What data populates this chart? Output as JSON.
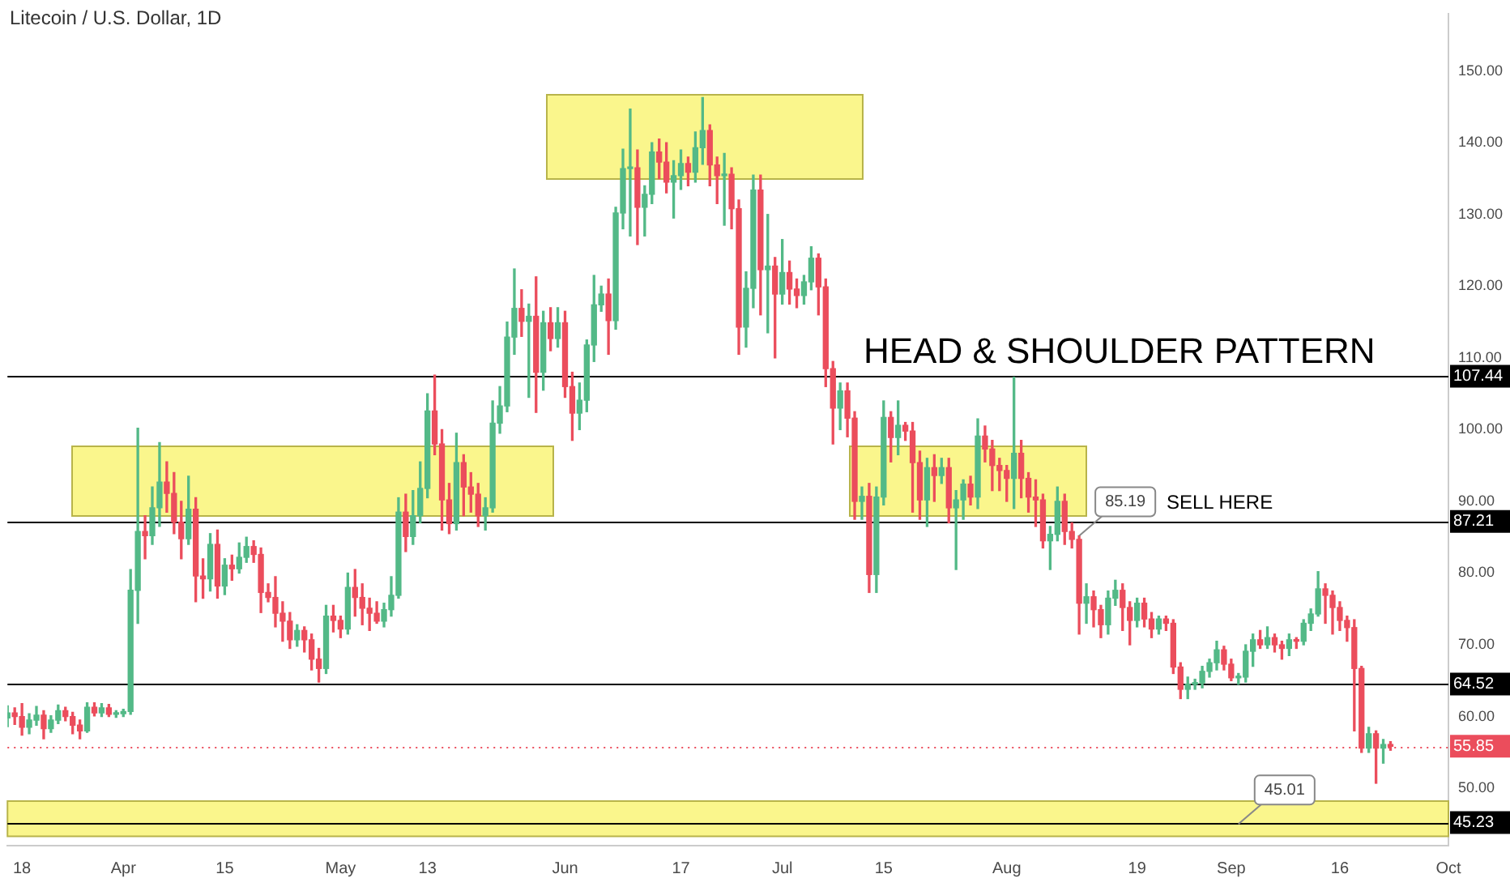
{
  "chart_data": {
    "type": "candlestick",
    "title": "Litecoin / U.S. Dollar, 1D",
    "x": [
      "--03-16",
      "--03-17",
      "--03-18",
      "--03-19",
      "--03-20",
      "--03-21",
      "--03-22",
      "--03-23",
      "--03-24",
      "--03-25",
      "--03-26",
      "--03-27",
      "--03-28",
      "--03-29",
      "--03-30",
      "--03-31",
      "--04-01",
      "--04-02",
      "--04-03",
      "--04-04",
      "--04-05",
      "--04-06",
      "--04-07",
      "--04-08",
      "--04-09",
      "--04-10",
      "--04-11",
      "--04-12",
      "--04-13",
      "--04-14",
      "--04-15",
      "--04-16",
      "--04-17",
      "--04-18",
      "--04-19",
      "--04-20",
      "--04-21",
      "--04-22",
      "--04-23",
      "--04-24",
      "--04-25",
      "--04-26",
      "--04-27",
      "--04-28",
      "--04-29",
      "--04-30",
      "--05-01",
      "--05-02",
      "--05-03",
      "--05-04",
      "--05-05",
      "--05-06",
      "--05-07",
      "--05-08",
      "--05-09",
      "--05-10",
      "--05-11",
      "--05-12",
      "--05-13",
      "--05-14",
      "--05-15",
      "--05-16",
      "--05-17",
      "--05-18",
      "--05-19",
      "--05-20",
      "--05-21",
      "--05-22",
      "--05-23",
      "--05-24",
      "--05-25",
      "--05-26",
      "--05-27",
      "--05-28",
      "--05-29",
      "--05-30",
      "--05-31",
      "--06-01",
      "--06-02",
      "--06-03",
      "--06-04",
      "--06-05",
      "--06-06",
      "--06-07",
      "--06-08",
      "--06-09",
      "--06-10",
      "--06-11",
      "--06-12",
      "--06-13",
      "--06-14",
      "--06-15",
      "--06-16",
      "--06-17",
      "--06-18",
      "--06-19",
      "--06-20",
      "--06-21",
      "--06-22",
      "--06-23",
      "--06-24",
      "--06-25",
      "--06-26",
      "--06-27",
      "--06-28",
      "--06-29",
      "--06-30",
      "--07-01",
      "--07-02",
      "--07-03",
      "--07-04",
      "--07-05",
      "--07-06",
      "--07-07",
      "--07-08",
      "--07-09",
      "--07-10",
      "--07-11",
      "--07-12",
      "--07-13",
      "--07-14",
      "--07-15",
      "--07-16",
      "--07-17",
      "--07-18",
      "--07-19",
      "--07-20",
      "--07-21",
      "--07-22",
      "--07-23",
      "--07-24",
      "--07-25",
      "--07-26",
      "--07-27",
      "--07-28",
      "--07-29",
      "--07-30",
      "--07-31",
      "--08-01",
      "--08-02",
      "--08-03",
      "--08-04",
      "--08-05",
      "--08-06",
      "--08-07",
      "--08-08",
      "--08-09",
      "--08-10",
      "--08-11",
      "--08-12",
      "--08-13",
      "--08-14",
      "--08-15",
      "--08-16",
      "--08-17",
      "--08-18",
      "--08-19",
      "--08-20",
      "--08-21",
      "--08-22",
      "--08-23",
      "--08-24",
      "--08-25",
      "--08-26",
      "--08-27",
      "--08-28",
      "--08-29",
      "--08-30",
      "--08-31",
      "--09-01",
      "--09-02",
      "--09-03",
      "--09-04",
      "--09-05",
      "--09-06",
      "--09-07",
      "--09-08",
      "--09-09",
      "--09-10",
      "--09-11",
      "--09-12",
      "--09-13",
      "--09-14",
      "--09-15",
      "--09-16",
      "--09-17",
      "--09-18",
      "--09-19",
      "--09-20",
      "--09-21",
      "--09-22",
      "--09-23"
    ],
    "ohlc": [
      [
        59.8,
        61.5,
        58.6,
        60.5
      ],
      [
        60.5,
        61.2,
        58.9,
        60.0
      ],
      [
        60.0,
        61.8,
        57.4,
        58.5
      ],
      [
        58.5,
        60.4,
        57.6,
        59.5
      ],
      [
        59.5,
        61.4,
        58.8,
        60.2
      ],
      [
        60.2,
        60.8,
        56.9,
        58.3
      ],
      [
        58.3,
        60.1,
        57.8,
        59.5
      ],
      [
        59.5,
        61.6,
        59.0,
        60.8
      ],
      [
        60.8,
        61.3,
        59.4,
        60.0
      ],
      [
        60.0,
        60.6,
        57.6,
        58.8
      ],
      [
        58.8,
        59.5,
        56.9,
        58.0
      ],
      [
        58.0,
        61.9,
        57.8,
        61.3
      ],
      [
        61.3,
        61.9,
        60.1,
        60.5
      ],
      [
        60.5,
        61.8,
        60.0,
        61.2
      ],
      [
        61.2,
        61.7,
        60.0,
        60.3
      ],
      [
        60.3,
        60.8,
        59.9,
        60.4
      ],
      [
        60.4,
        61.0,
        60.0,
        60.7
      ],
      [
        60.7,
        80.5,
        60.3,
        77.6
      ],
      [
        77.6,
        100.2,
        73.0,
        85.8
      ],
      [
        85.8,
        88.0,
        82.0,
        85.2
      ],
      [
        85.2,
        92.0,
        84.0,
        89.1
      ],
      [
        89.1,
        98.2,
        86.5,
        92.7
      ],
      [
        92.7,
        95.5,
        88.5,
        91.1
      ],
      [
        91.1,
        94.0,
        85.5,
        87.1
      ],
      [
        87.1,
        90.0,
        82.0,
        84.8
      ],
      [
        84.8,
        93.5,
        84.0,
        88.9
      ],
      [
        88.9,
        90.5,
        76.0,
        79.6
      ],
      [
        79.6,
        82.0,
        76.5,
        79.2
      ],
      [
        79.2,
        85.5,
        77.5,
        84.0
      ],
      [
        84.0,
        86.0,
        76.5,
        78.2
      ],
      [
        78.2,
        82.0,
        77.0,
        81.1
      ],
      [
        81.1,
        82.5,
        79.0,
        80.6
      ],
      [
        80.6,
        84.2,
        80.0,
        82.2
      ],
      [
        82.2,
        85.0,
        81.5,
        83.7
      ],
      [
        83.7,
        84.5,
        81.5,
        82.6
      ],
      [
        82.6,
        83.5,
        74.5,
        77.3
      ],
      [
        77.3,
        78.5,
        76.0,
        76.6
      ],
      [
        76.6,
        79.5,
        72.5,
        74.4
      ],
      [
        74.4,
        76.0,
        70.5,
        73.3
      ],
      [
        73.3,
        74.5,
        69.5,
        70.7
      ],
      [
        70.7,
        72.8,
        69.8,
        72.0
      ],
      [
        72.0,
        72.5,
        69.0,
        70.7
      ],
      [
        70.7,
        71.5,
        66.5,
        68.0
      ],
      [
        68.0,
        69.5,
        64.8,
        66.7
      ],
      [
        66.7,
        75.5,
        66.0,
        74.0
      ],
      [
        74.0,
        75.5,
        71.8,
        73.4
      ],
      [
        73.4,
        74.0,
        71.0,
        72.2
      ],
      [
        72.2,
        80.0,
        71.5,
        78.0
      ],
      [
        78.0,
        80.5,
        74.0,
        76.6
      ],
      [
        76.6,
        78.5,
        72.8,
        75.1
      ],
      [
        75.1,
        76.5,
        72.0,
        74.4
      ],
      [
        74.4,
        76.0,
        73.0,
        73.3
      ],
      [
        73.3,
        75.8,
        72.5,
        74.9
      ],
      [
        74.9,
        79.5,
        74.0,
        76.9
      ],
      [
        76.9,
        90.5,
        76.5,
        88.5
      ],
      [
        88.5,
        91.0,
        83.0,
        85.1
      ],
      [
        85.1,
        91.5,
        84.0,
        88.0
      ],
      [
        88.0,
        95.5,
        87.0,
        91.8
      ],
      [
        91.8,
        105.0,
        90.5,
        102.6
      ],
      [
        102.6,
        107.6,
        96.5,
        98.0
      ],
      [
        98.0,
        100.0,
        86.0,
        90.2
      ],
      [
        90.2,
        92.5,
        85.5,
        86.9
      ],
      [
        86.9,
        99.5,
        86.0,
        95.4
      ],
      [
        95.4,
        96.5,
        88.0,
        92.0
      ],
      [
        92.0,
        94.0,
        88.5,
        91.0
      ],
      [
        91.0,
        92.5,
        86.5,
        88.0
      ],
      [
        88.0,
        90.5,
        86.0,
        89.1
      ],
      [
        89.1,
        104.0,
        88.5,
        100.9
      ],
      [
        100.9,
        106.0,
        99.5,
        103.3
      ],
      [
        103.3,
        115.0,
        102.5,
        112.9
      ],
      [
        112.9,
        122.4,
        110.5,
        116.9
      ],
      [
        116.9,
        119.5,
        113.0,
        115.1
      ],
      [
        115.1,
        117.5,
        104.5,
        115.8
      ],
      [
        115.8,
        121.3,
        102.4,
        108.0
      ],
      [
        108.0,
        116.5,
        105.5,
        114.9
      ],
      [
        114.9,
        117.0,
        111.0,
        112.7
      ],
      [
        112.7,
        117.0,
        111.5,
        114.9
      ],
      [
        114.9,
        116.5,
        104.5,
        106.0
      ],
      [
        106.0,
        108.0,
        98.5,
        102.3
      ],
      [
        102.3,
        106.5,
        100.0,
        104.1
      ],
      [
        104.1,
        112.5,
        102.5,
        111.8
      ],
      [
        111.8,
        121.5,
        109.5,
        117.4
      ],
      [
        117.4,
        120.0,
        116.5,
        118.9
      ],
      [
        118.9,
        121.0,
        110.5,
        115.2
      ],
      [
        115.2,
        131.0,
        114.0,
        130.2
      ],
      [
        130.2,
        139.1,
        128.0,
        136.4
      ],
      [
        136.4,
        144.7,
        127.0,
        136.5
      ],
      [
        136.5,
        139.0,
        125.8,
        131.0
      ],
      [
        131.0,
        134.0,
        127.0,
        132.8
      ],
      [
        132.8,
        140.0,
        131.5,
        138.7
      ],
      [
        138.7,
        140.5,
        135.0,
        137.3
      ],
      [
        137.3,
        140.0,
        133.0,
        134.5
      ],
      [
        134.5,
        137.5,
        129.5,
        135.4
      ],
      [
        135.4,
        139.0,
        133.5,
        137.1
      ],
      [
        137.1,
        138.0,
        134.0,
        135.9
      ],
      [
        135.9,
        141.5,
        134.5,
        139.3
      ],
      [
        139.3,
        146.3,
        137.0,
        141.7
      ],
      [
        141.7,
        142.5,
        134.0,
        136.9
      ],
      [
        136.9,
        138.0,
        131.5,
        135.4
      ],
      [
        135.4,
        138.5,
        128.5,
        135.6
      ],
      [
        135.6,
        136.5,
        128.0,
        130.8
      ],
      [
        130.8,
        132.0,
        110.5,
        114.3
      ],
      [
        114.3,
        122.0,
        111.5,
        119.7
      ],
      [
        119.7,
        135.5,
        117.0,
        133.4
      ],
      [
        133.4,
        135.5,
        116.0,
        122.3
      ],
      [
        122.3,
        130.0,
        113.5,
        122.8
      ],
      [
        122.8,
        124.0,
        110.0,
        118.9
      ],
      [
        118.9,
        126.5,
        117.5,
        121.9
      ],
      [
        121.9,
        123.5,
        117.5,
        119.6
      ],
      [
        119.6,
        121.0,
        117.0,
        118.7
      ],
      [
        118.7,
        121.5,
        117.5,
        120.6
      ],
      [
        120.6,
        125.5,
        119.5,
        123.9
      ],
      [
        123.9,
        124.5,
        116.0,
        119.9
      ],
      [
        119.9,
        121.0,
        106.0,
        108.5
      ],
      [
        108.5,
        109.5,
        98.0,
        103.0
      ],
      [
        103.0,
        106.5,
        100.0,
        105.4
      ],
      [
        105.4,
        106.5,
        99.0,
        101.6
      ],
      [
        101.6,
        102.5,
        87.5,
        90.0
      ],
      [
        90.0,
        92.0,
        87.5,
        90.7
      ],
      [
        90.7,
        92.5,
        77.3,
        79.8
      ],
      [
        79.8,
        92.0,
        77.3,
        90.6
      ],
      [
        90.6,
        104.0,
        89.5,
        101.7
      ],
      [
        101.7,
        102.5,
        95.5,
        98.9
      ],
      [
        98.9,
        104.0,
        96.5,
        100.6
      ],
      [
        100.6,
        101.0,
        98.5,
        99.8
      ],
      [
        99.8,
        101.0,
        88.5,
        95.4
      ],
      [
        95.4,
        97.0,
        87.5,
        90.2
      ],
      [
        90.2,
        96.0,
        86.5,
        94.7
      ],
      [
        94.7,
        96.5,
        90.0,
        93.6
      ],
      [
        93.6,
        96.0,
        92.5,
        94.7
      ],
      [
        94.7,
        96.0,
        87.0,
        89.1
      ],
      [
        89.1,
        91.5,
        80.5,
        90.2
      ],
      [
        90.2,
        93.0,
        87.5,
        92.4
      ],
      [
        92.4,
        93.5,
        89.5,
        90.6
      ],
      [
        90.6,
        101.5,
        89.0,
        99.1
      ],
      [
        99.1,
        100.5,
        95.5,
        97.3
      ],
      [
        97.3,
        98.5,
        91.5,
        95.0
      ],
      [
        95.0,
        96.0,
        91.5,
        94.3
      ],
      [
        94.3,
        95.0,
        90.0,
        93.2
      ],
      [
        93.2,
        107.3,
        89.0,
        96.7
      ],
      [
        96.7,
        98.5,
        90.5,
        93.2
      ],
      [
        93.2,
        94.0,
        88.5,
        90.6
      ],
      [
        90.6,
        93.0,
        86.5,
        90.2
      ],
      [
        90.2,
        91.0,
        83.5,
        84.5
      ],
      [
        84.5,
        86.5,
        80.5,
        85.4
      ],
      [
        85.4,
        92.0,
        84.5,
        90.0
      ],
      [
        90.0,
        91.0,
        84.0,
        85.8
      ],
      [
        85.8,
        87.0,
        83.5,
        84.7
      ],
      [
        84.7,
        85.19,
        71.5,
        75.8
      ],
      [
        75.8,
        78.5,
        73.0,
        76.7
      ],
      [
        76.7,
        77.5,
        72.5,
        74.9
      ],
      [
        74.9,
        75.5,
        71.0,
        72.8
      ],
      [
        72.8,
        77.5,
        71.5,
        76.5
      ],
      [
        76.5,
        79.0,
        75.5,
        77.6
      ],
      [
        77.6,
        78.5,
        72.0,
        75.2
      ],
      [
        75.2,
        76.0,
        70.0,
        73.4
      ],
      [
        73.4,
        76.5,
        72.5,
        75.8
      ],
      [
        75.8,
        76.5,
        72.5,
        73.6
      ],
      [
        73.6,
        74.5,
        71.0,
        72.2
      ],
      [
        72.2,
        74.0,
        71.5,
        73.6
      ],
      [
        73.6,
        74.0,
        72.0,
        73.0
      ],
      [
        73.0,
        73.5,
        66.0,
        66.9
      ],
      [
        66.9,
        67.5,
        62.5,
        63.8
      ],
      [
        63.8,
        65.5,
        62.5,
        64.5
      ],
      [
        64.5,
        65.2,
        63.8,
        64.7
      ],
      [
        64.7,
        67.0,
        64.0,
        66.3
      ],
      [
        66.3,
        68.0,
        65.5,
        67.5
      ],
      [
        67.5,
        70.5,
        66.5,
        69.3
      ],
      [
        69.3,
        69.8,
        66.5,
        67.3
      ],
      [
        67.3,
        68.0,
        65.0,
        65.4
      ],
      [
        65.4,
        66.0,
        64.5,
        65.5
      ],
      [
        65.5,
        70.0,
        64.8,
        69.1
      ],
      [
        69.1,
        71.5,
        67.0,
        70.7
      ],
      [
        70.7,
        72.0,
        69.5,
        70.0
      ],
      [
        70.0,
        72.5,
        69.5,
        71.0
      ],
      [
        71.0,
        71.5,
        69.0,
        70.0
      ],
      [
        70.0,
        70.5,
        68.0,
        69.5
      ],
      [
        69.5,
        71.5,
        68.5,
        70.7
      ],
      [
        70.7,
        71.0,
        69.5,
        70.5
      ],
      [
        70.5,
        73.5,
        70.0,
        73.0
      ],
      [
        73.0,
        75.0,
        72.0,
        74.3
      ],
      [
        74.3,
        80.2,
        74.0,
        77.8
      ],
      [
        77.8,
        78.5,
        73.0,
        76.9
      ],
      [
        76.9,
        77.5,
        71.5,
        75.2
      ],
      [
        75.2,
        76.0,
        72.0,
        73.4
      ],
      [
        73.4,
        74.0,
        70.5,
        72.4
      ],
      [
        72.4,
        73.5,
        58.0,
        66.7
      ],
      [
        66.7,
        67.0,
        55.0,
        55.6
      ],
      [
        55.6,
        58.5,
        55.0,
        57.6
      ],
      [
        57.6,
        58.0,
        50.7,
        55.6
      ],
      [
        55.6,
        56.8,
        53.5,
        56.1
      ],
      [
        56.1,
        56.5,
        55.3,
        55.85
      ]
    ],
    "colors": [
      "#53b987",
      "#eb4d5c",
      "#eb4d5c",
      "#53b987",
      "#53b987",
      "#eb4d5c",
      "#53b987",
      "#53b987",
      "#eb4d5c",
      "#eb4d5c",
      "#eb4d5c",
      "#53b987",
      "#eb4d5c",
      "#53b987",
      "#eb4d5c",
      "#53b987",
      "#53b987",
      "#53b987",
      "#53b987",
      "#eb4d5c",
      "#53b987",
      "#53b987",
      "#eb4d5c",
      "#eb4d5c",
      "#eb4d5c",
      "#53b987",
      "#eb4d5c",
      "#eb4d5c",
      "#53b987",
      "#eb4d5c",
      "#53b987",
      "#eb4d5c",
      "#53b987",
      "#53b987",
      "#eb4d5c",
      "#eb4d5c",
      "#eb4d5c",
      "#eb4d5c",
      "#eb4d5c",
      "#eb4d5c",
      "#53b987",
      "#eb4d5c",
      "#eb4d5c",
      "#eb4d5c",
      "#53b987",
      "#eb4d5c",
      "#eb4d5c",
      "#53b987",
      "#eb4d5c",
      "#eb4d5c",
      "#eb4d5c",
      "#eb4d5c",
      "#53b987",
      "#53b987",
      "#53b987",
      "#eb4d5c",
      "#53b987",
      "#53b987",
      "#53b987",
      "#eb4d5c",
      "#eb4d5c",
      "#eb4d5c",
      "#53b987",
      "#eb4d5c",
      "#eb4d5c",
      "#eb4d5c",
      "#53b987",
      "#53b987",
      "#53b987",
      "#53b987",
      "#53b987",
      "#eb4d5c",
      "#53b987",
      "#eb4d5c",
      "#53b987",
      "#eb4d5c",
      "#53b987",
      "#eb4d5c",
      "#eb4d5c",
      "#53b987",
      "#53b987",
      "#53b987",
      "#53b987",
      "#eb4d5c",
      "#53b987",
      "#53b987",
      "#53b987",
      "#eb4d5c",
      "#53b987",
      "#53b987",
      "#eb4d5c",
      "#eb4d5c",
      "#53b987",
      "#53b987",
      "#eb4d5c",
      "#53b987",
      "#53b987",
      "#eb4d5c",
      "#eb4d5c",
      "#53b987",
      "#eb4d5c",
      "#eb4d5c",
      "#53b987",
      "#53b987",
      "#eb4d5c",
      "#53b987",
      "#eb4d5c",
      "#53b987",
      "#eb4d5c",
      "#eb4d5c",
      "#53b987",
      "#53b987",
      "#eb4d5c",
      "#eb4d5c",
      "#eb4d5c",
      "#53b987",
      "#eb4d5c",
      "#eb4d5c",
      "#53b987",
      "#eb4d5c",
      "#53b987",
      "#53b987",
      "#eb4d5c",
      "#53b987",
      "#eb4d5c",
      "#eb4d5c",
      "#eb4d5c",
      "#53b987",
      "#eb4d5c",
      "#53b987",
      "#eb4d5c",
      "#53b987",
      "#53b987",
      "#eb4d5c",
      "#53b987",
      "#eb4d5c",
      "#eb4d5c",
      "#eb4d5c",
      "#eb4d5c",
      "#53b987",
      "#eb4d5c",
      "#eb4d5c",
      "#eb4d5c",
      "#eb4d5c",
      "#53b987",
      "#53b987",
      "#eb4d5c",
      "#eb4d5c",
      "#eb4d5c",
      "#53b987",
      "#eb4d5c",
      "#eb4d5c",
      "#53b987",
      "#53b987",
      "#eb4d5c",
      "#eb4d5c",
      "#53b987",
      "#eb4d5c",
      "#eb4d5c",
      "#53b987",
      "#eb4d5c",
      "#eb4d5c",
      "#eb4d5c",
      "#53b987",
      "#53b987",
      "#53b987",
      "#53b987",
      "#53b987",
      "#eb4d5c",
      "#eb4d5c",
      "#53b987",
      "#53b987",
      "#53b987",
      "#eb4d5c",
      "#53b987",
      "#eb4d5c",
      "#eb4d5c",
      "#53b987",
      "#eb4d5c",
      "#53b987",
      "#53b987",
      "#53b987",
      "#eb4d5c",
      "#eb4d5c",
      "#eb4d5c",
      "#eb4d5c",
      "#eb4d5c",
      "#eb4d5c",
      "#53b987",
      "#eb4d5c",
      "#53b987",
      "#eb4d5c"
    ],
    "xlim": [
      "--03-16",
      "--10-01"
    ],
    "xticks": [
      {
        "value": "--03-18",
        "label": "18"
      },
      {
        "value": "--04-01",
        "label": "Apr"
      },
      {
        "value": "--04-15",
        "label": "15"
      },
      {
        "value": "--05-01",
        "label": "May"
      },
      {
        "value": "--05-13",
        "label": "13"
      },
      {
        "value": "--06-01",
        "label": "Jun"
      },
      {
        "value": "--06-17",
        "label": "17"
      },
      {
        "value": "--07-01",
        "label": "Jul"
      },
      {
        "value": "--07-15",
        "label": "15"
      },
      {
        "value": "--08-01",
        "label": "Aug"
      },
      {
        "value": "--08-19",
        "label": "19"
      },
      {
        "value": "--09-01",
        "label": "Sep"
      },
      {
        "value": "--09-16",
        "label": "16"
      },
      {
        "value": "--10-01",
        "label": "Oct"
      }
    ],
    "ylim": [
      42,
      158
    ],
    "yticks": [
      {
        "value": 50,
        "label": "50.00"
      },
      {
        "value": 60,
        "label": "60.00"
      },
      {
        "value": 70,
        "label": "70.00"
      },
      {
        "value": 80,
        "label": "80.00"
      },
      {
        "value": 90,
        "label": "90.00"
      },
      {
        "value": 100,
        "label": "100.00"
      },
      {
        "value": 110,
        "label": "110.00"
      },
      {
        "value": 120,
        "label": "120.00"
      },
      {
        "value": 130,
        "label": "130.00"
      },
      {
        "value": 140,
        "label": "140.00"
      },
      {
        "value": 150,
        "label": "150.00"
      }
    ],
    "ref_lines": [
      {
        "axis": "y",
        "value": 107.44,
        "label": "107.44",
        "color": "#000000"
      },
      {
        "axis": "y",
        "value": 87.21,
        "label": "87.21",
        "color": "#000000"
      },
      {
        "axis": "y",
        "value": 64.52,
        "label": "64.52",
        "color": "#000000"
      },
      {
        "axis": "y",
        "value": 45.23,
        "label": "45.23",
        "color": "#000000"
      },
      {
        "axis": "y",
        "value": 55.85,
        "label": "55.85",
        "color": "#eb4d5c",
        "line_style": "dotted"
      }
    ],
    "bands": [
      {
        "axis": "y",
        "from": 43.3,
        "to": 48.2,
        "color": "#faf68c"
      }
    ],
    "annotations": [
      "HEAD & SHOULDER PATTERN",
      "SELL HERE",
      {
        "text": "85.19",
        "x": "--08-11",
        "y": 85.19
      },
      {
        "text": "45.01",
        "x": "--09-02",
        "y": 45.01
      }
    ]
  }
}
